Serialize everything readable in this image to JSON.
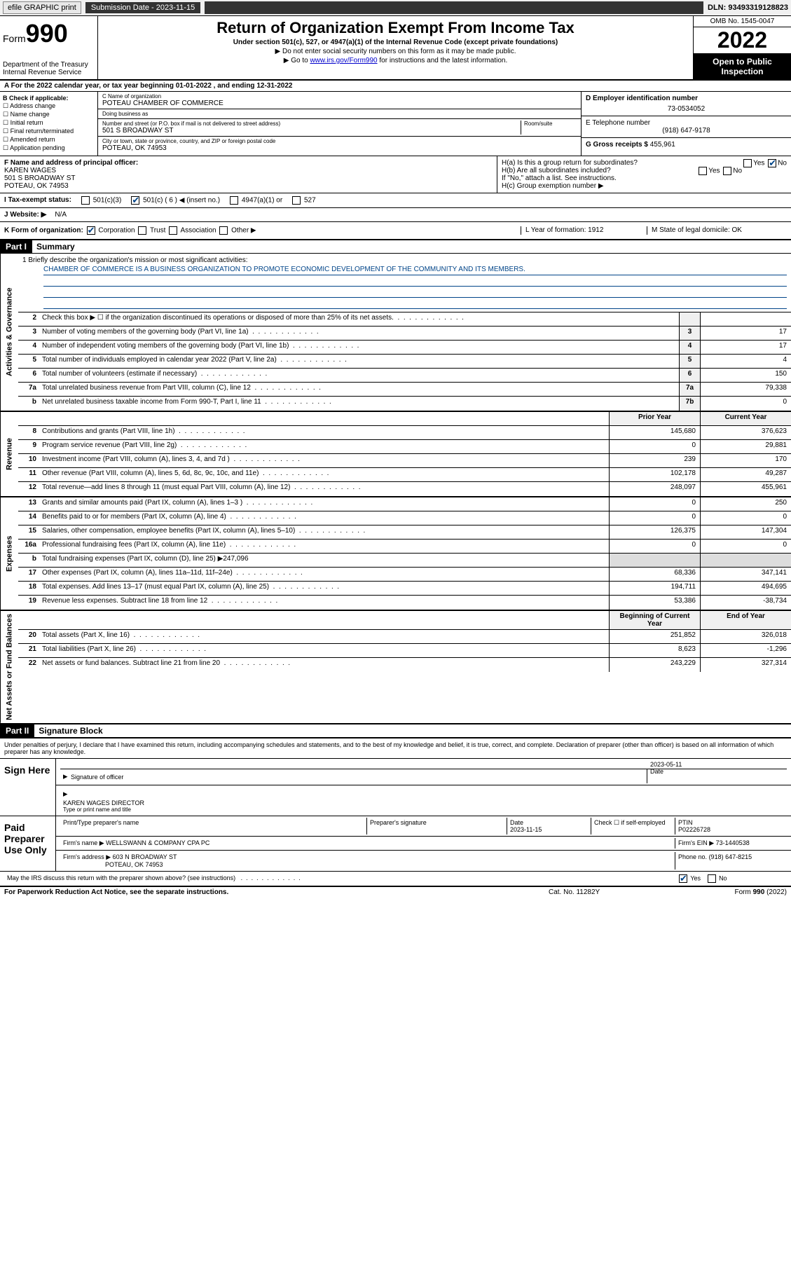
{
  "topbar": {
    "efile": "efile GRAPHIC print",
    "submission_label": "Submission Date - 2023-11-15",
    "dln": "DLN: 93493319128823"
  },
  "header": {
    "form_word": "Form",
    "form_num": "990",
    "dept": "Department of the Treasury",
    "irs": "Internal Revenue Service",
    "title": "Return of Organization Exempt From Income Tax",
    "sub": "Under section 501(c), 527, or 4947(a)(1) of the Internal Revenue Code (except private foundations)",
    "note1": "▶ Do not enter social security numbers on this form as it may be made public.",
    "note2_pre": "▶ Go to ",
    "note2_link": "www.irs.gov/Form990",
    "note2_post": " for instructions and the latest information.",
    "omb": "OMB No. 1545-0047",
    "year": "2022",
    "inspect": "Open to Public Inspection"
  },
  "line_a": "A For the 2022 calendar year, or tax year beginning 01-01-2022   , and ending 12-31-2022",
  "box_b": {
    "title": "B Check if applicable:",
    "opts": [
      "Address change",
      "Name change",
      "Initial return",
      "Final return/terminated",
      "Amended return",
      "Application pending"
    ]
  },
  "box_c": {
    "name_lab": "C Name of organization",
    "name": "POTEAU CHAMBER OF COMMERCE",
    "dba_lab": "Doing business as",
    "dba": "",
    "addr_lab": "Number and street (or P.O. box if mail is not delivered to street address)",
    "room_lab": "Room/suite",
    "addr": "501 S BROADWAY ST",
    "city_lab": "City or town, state or province, country, and ZIP or foreign postal code",
    "city": "POTEAU, OK  74953"
  },
  "box_d": {
    "lab": "D Employer identification number",
    "val": "73-0534052"
  },
  "box_e": {
    "lab": "E Telephone number",
    "val": "(918) 647-9178"
  },
  "box_g": {
    "lab": "G Gross receipts $",
    "val": "455,961"
  },
  "box_f": {
    "lab": "F Name and address of principal officer:",
    "name": "KAREN WAGES",
    "addr1": "501 S BROADWAY ST",
    "addr2": "POTEAU, OK  74953"
  },
  "box_h": {
    "ha": "H(a)  Is this a group return for subordinates?",
    "ha_yes": "Yes",
    "ha_no": "No",
    "hb": "H(b)  Are all subordinates included?",
    "hb_yes": "Yes",
    "hb_no": "No",
    "hb_note": "If \"No,\" attach a list. See instructions.",
    "hc": "H(c)  Group exemption number ▶"
  },
  "row_i": {
    "lab": "I   Tax-exempt status:",
    "o1": "501(c)(3)",
    "o2": "501(c) ( 6 ) ◀ (insert no.)",
    "o3": "4947(a)(1) or",
    "o4": "527"
  },
  "row_j": {
    "lab": "J   Website: ▶",
    "val": "N/A"
  },
  "row_k": {
    "lab": "K Form of organization:",
    "o1": "Corporation",
    "o2": "Trust",
    "o3": "Association",
    "o4": "Other ▶",
    "l": "L Year of formation: 1912",
    "m": "M State of legal domicile: OK"
  },
  "part1": {
    "hdr": "Part I",
    "title": "Summary"
  },
  "mission": {
    "q": "1   Briefly describe the organization's mission or most significant activities:",
    "text": "CHAMBER OF COMMERCE IS A BUSINESS ORGANIZATION TO PROMOTE ECONOMIC DEVELOPMENT OF THE COMMUNITY AND ITS MEMBERS."
  },
  "gov_lines": [
    {
      "n": "2",
      "d": "Check this box ▶ ☐  if the organization discontinued its operations or disposed of more than 25% of its net assets.",
      "box": "",
      "v": ""
    },
    {
      "n": "3",
      "d": "Number of voting members of the governing body (Part VI, line 1a)",
      "box": "3",
      "v": "17"
    },
    {
      "n": "4",
      "d": "Number of independent voting members of the governing body (Part VI, line 1b)",
      "box": "4",
      "v": "17"
    },
    {
      "n": "5",
      "d": "Total number of individuals employed in calendar year 2022 (Part V, line 2a)",
      "box": "5",
      "v": "4"
    },
    {
      "n": "6",
      "d": "Total number of volunteers (estimate if necessary)",
      "box": "6",
      "v": "150"
    },
    {
      "n": "7a",
      "d": "Total unrelated business revenue from Part VIII, column (C), line 12",
      "box": "7a",
      "v": "79,338"
    },
    {
      "n": "b",
      "d": "Net unrelated business taxable income from Form 990-T, Part I, line 11",
      "box": "7b",
      "v": "0"
    }
  ],
  "rev_hdr": {
    "prior": "Prior Year",
    "curr": "Current Year"
  },
  "rev_lines": [
    {
      "n": "8",
      "d": "Contributions and grants (Part VIII, line 1h)",
      "p": "145,680",
      "c": "376,623"
    },
    {
      "n": "9",
      "d": "Program service revenue (Part VIII, line 2g)",
      "p": "0",
      "c": "29,881"
    },
    {
      "n": "10",
      "d": "Investment income (Part VIII, column (A), lines 3, 4, and 7d )",
      "p": "239",
      "c": "170"
    },
    {
      "n": "11",
      "d": "Other revenue (Part VIII, column (A), lines 5, 6d, 8c, 9c, 10c, and 11e)",
      "p": "102,178",
      "c": "49,287"
    },
    {
      "n": "12",
      "d": "Total revenue—add lines 8 through 11 (must equal Part VIII, column (A), line 12)",
      "p": "248,097",
      "c": "455,961"
    }
  ],
  "exp_lines": [
    {
      "n": "13",
      "d": "Grants and similar amounts paid (Part IX, column (A), lines 1–3 )",
      "p": "0",
      "c": "250"
    },
    {
      "n": "14",
      "d": "Benefits paid to or for members (Part IX, column (A), line 4)",
      "p": "0",
      "c": "0"
    },
    {
      "n": "15",
      "d": "Salaries, other compensation, employee benefits (Part IX, column (A), lines 5–10)",
      "p": "126,375",
      "c": "147,304"
    },
    {
      "n": "16a",
      "d": "Professional fundraising fees (Part IX, column (A), line 11e)",
      "p": "0",
      "c": "0"
    },
    {
      "n": "b",
      "d": "Total fundraising expenses (Part IX, column (D), line 25) ▶247,096",
      "p": "",
      "c": "",
      "shade": true
    },
    {
      "n": "17",
      "d": "Other expenses (Part IX, column (A), lines 11a–11d, 11f–24e)",
      "p": "68,336",
      "c": "347,141"
    },
    {
      "n": "18",
      "d": "Total expenses. Add lines 13–17 (must equal Part IX, column (A), line 25)",
      "p": "194,711",
      "c": "494,695"
    },
    {
      "n": "19",
      "d": "Revenue less expenses. Subtract line 18 from line 12",
      "p": "53,386",
      "c": "-38,734"
    }
  ],
  "na_hdr": {
    "beg": "Beginning of Current Year",
    "end": "End of Year"
  },
  "na_lines": [
    {
      "n": "20",
      "d": "Total assets (Part X, line 16)",
      "p": "251,852",
      "c": "326,018"
    },
    {
      "n": "21",
      "d": "Total liabilities (Part X, line 26)",
      "p": "8,623",
      "c": "-1,296"
    },
    {
      "n": "22",
      "d": "Net assets or fund balances. Subtract line 21 from line 20",
      "p": "243,229",
      "c": "327,314"
    }
  ],
  "part2": {
    "hdr": "Part II",
    "title": "Signature Block"
  },
  "sig": {
    "decl": "Under penalties of perjury, I declare that I have examined this return, including accompanying schedules and statements, and to the best of my knowledge and belief, it is true, correct, and complete. Declaration of preparer (other than officer) is based on all information of which preparer has any knowledge.",
    "sign_here": "Sign Here",
    "sig_officer": "Signature of officer",
    "date": "Date",
    "date_val": "2023-05-11",
    "name_title": "KAREN WAGES  DIRECTOR",
    "name_lab": "Type or print name and title",
    "paid": "Paid Preparer Use Only",
    "prep_name_lab": "Print/Type preparer's name",
    "prep_sig_lab": "Preparer's signature",
    "prep_date_lab": "Date",
    "prep_date": "2023-11-15",
    "check_lab": "Check ☐ if self-employed",
    "ptin_lab": "PTIN",
    "ptin": "P02226728",
    "firm_name_lab": "Firm's name    ▶",
    "firm_name": "WELLSWANN & COMPANY CPA PC",
    "firm_ein_lab": "Firm's EIN ▶",
    "firm_ein": "73-1440538",
    "firm_addr_lab": "Firm's address ▶",
    "firm_addr1": "603 N BROADWAY ST",
    "firm_addr2": "POTEAU, OK  74953",
    "phone_lab": "Phone no.",
    "phone": "(918) 647-8215",
    "may_irs": "May the IRS discuss this return with the preparer shown above? (see instructions)",
    "yes": "Yes",
    "no": "No"
  },
  "footer": {
    "l": "For Paperwork Reduction Act Notice, see the separate instructions.",
    "m": "Cat. No. 11282Y",
    "r": "Form 990 (2022)"
  },
  "vtabs": {
    "gov": "Activities & Governance",
    "rev": "Revenue",
    "exp": "Expenses",
    "na": "Net Assets or Fund Balances"
  }
}
